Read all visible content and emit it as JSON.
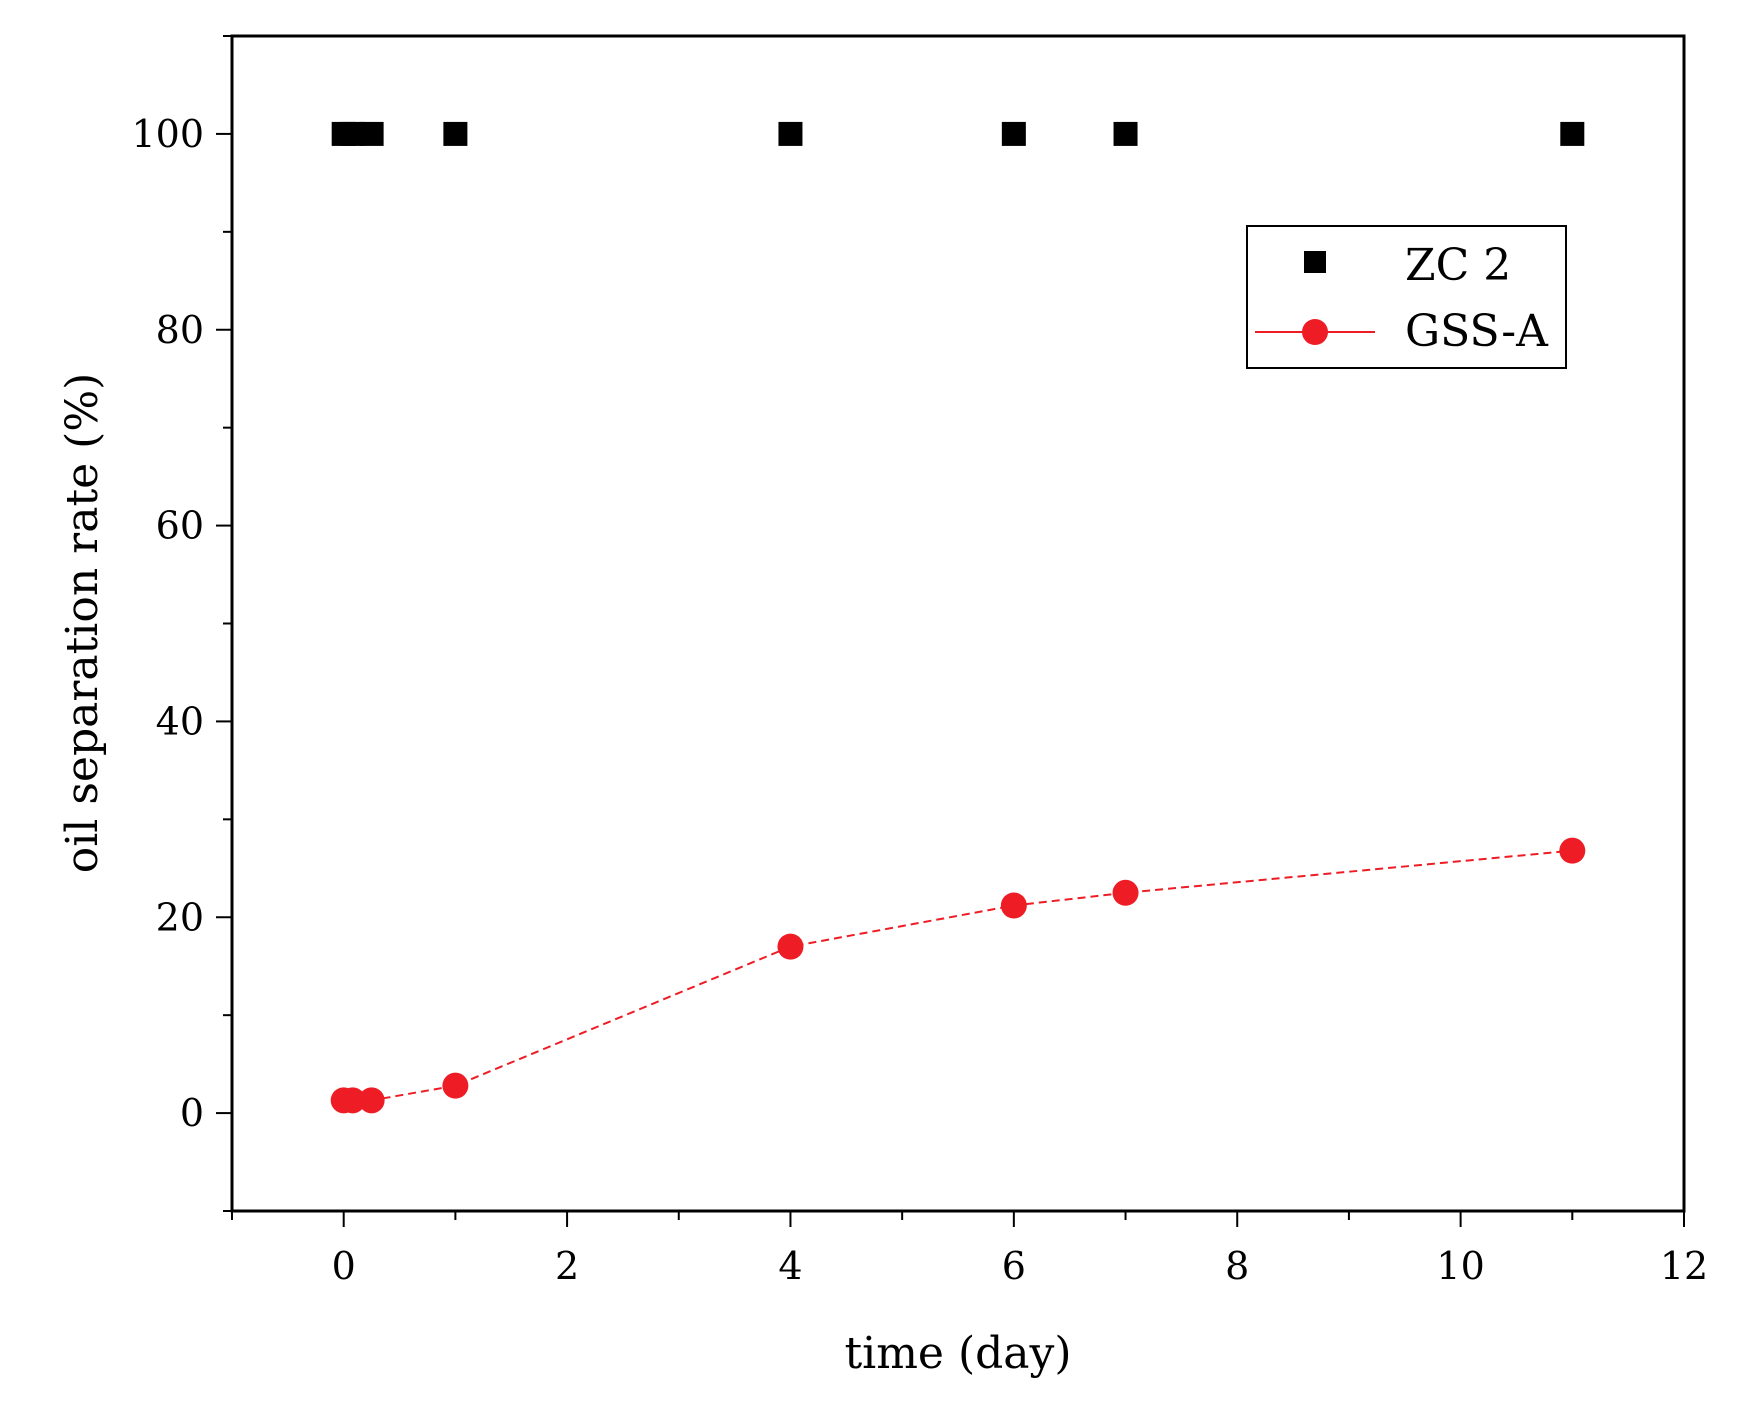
{
  "chart_data": {
    "type": "scatter",
    "title": "",
    "xlabel": "time (day)",
    "ylabel": "oil separation rate (%)",
    "xlim": [
      -1,
      12
    ],
    "ylim": [
      -10,
      110
    ],
    "xticks": [
      0,
      2,
      4,
      6,
      8,
      10,
      12
    ],
    "xtick_labels": [
      "0",
      "2",
      "4",
      "6",
      "8",
      "10",
      "12"
    ],
    "yticks": [
      0,
      20,
      40,
      60,
      80,
      100
    ],
    "ytick_labels": [
      "0",
      "20",
      "40",
      "60",
      "80",
      "100"
    ],
    "grid": false,
    "legend_position": "top-right",
    "series": [
      {
        "name": "ZC 2",
        "marker": "square",
        "line": "none",
        "color": "#000000",
        "x": [
          0,
          0.08,
          0.25,
          1,
          4,
          6,
          7,
          11
        ],
        "y": [
          100,
          100,
          100,
          100,
          100,
          100,
          100,
          100
        ]
      },
      {
        "name": "GSS-A",
        "marker": "circle",
        "line": "dashed",
        "color": "#ee1c24",
        "x": [
          0,
          0.08,
          0.25,
          1,
          4,
          6,
          7,
          11
        ],
        "y": [
          1.3,
          1.3,
          1.3,
          2.8,
          17,
          21.2,
          22.5,
          26.8
        ]
      }
    ]
  }
}
